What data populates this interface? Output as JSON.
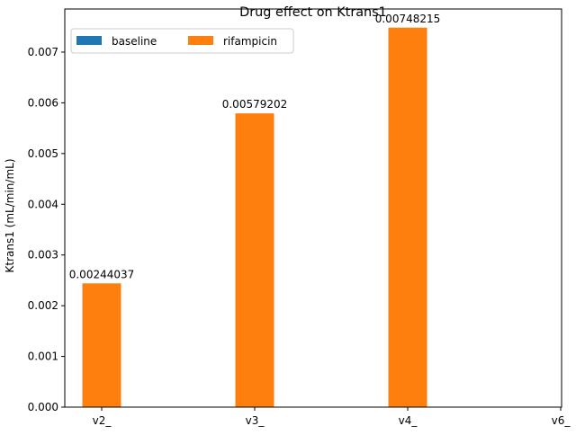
{
  "chart_data": {
    "type": "bar",
    "title": "Drug effect on Ktrans1",
    "xlabel": "",
    "ylabel": "Ktrans1 (mL/min/mL)",
    "categories": [
      "v2_",
      "v3_",
      "v4_",
      "v6_"
    ],
    "ylim": [
      0,
      0.00785
    ],
    "yticks": [
      "0.000",
      "0.001",
      "0.002",
      "0.003",
      "0.004",
      "0.005",
      "0.006",
      "0.007"
    ],
    "grid": false,
    "legend_position": "top-left",
    "series": [
      {
        "name": "baseline",
        "color": "#1f77b4",
        "values": [
          null,
          null,
          null,
          null
        ],
        "labels": [
          "",
          "",
          "",
          ""
        ]
      },
      {
        "name": "rifampicin",
        "color": "#ff7f0e",
        "values": [
          0.00244037,
          0.00579202,
          0.00748215,
          null
        ],
        "labels": [
          "0.00244037",
          "0.00579202",
          "0.00748215",
          ""
        ]
      }
    ]
  }
}
